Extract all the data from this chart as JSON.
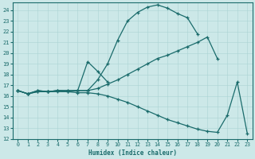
{
  "xlabel": "Humidex (Indice chaleur)",
  "xlim": [
    -0.5,
    23.5
  ],
  "ylim": [
    12,
    24.7
  ],
  "xticks": [
    0,
    1,
    2,
    3,
    4,
    5,
    6,
    7,
    8,
    9,
    10,
    11,
    12,
    13,
    14,
    15,
    16,
    17,
    18,
    19,
    20,
    21,
    22,
    23
  ],
  "yticks": [
    12,
    13,
    14,
    15,
    16,
    17,
    18,
    19,
    20,
    21,
    22,
    23,
    24
  ],
  "bg_color": "#cce8e8",
  "line_color": "#1a6b6b",
  "grid_color": "#aad4d4",
  "line1_x": [
    0,
    1,
    2,
    3,
    4,
    5,
    6,
    7,
    8,
    9,
    10,
    11,
    12,
    13,
    14,
    15,
    16,
    17,
    18
  ],
  "line1_y": [
    16.5,
    16.2,
    16.5,
    16.4,
    16.5,
    16.5,
    16.5,
    16.5,
    17.5,
    19.0,
    21.2,
    23.0,
    23.8,
    24.3,
    24.5,
    24.2,
    23.7,
    23.3,
    21.8
  ],
  "line2_x": [
    0,
    1,
    2,
    3,
    4,
    5,
    6,
    7,
    8,
    9,
    10,
    11,
    12,
    13,
    14,
    15,
    16,
    17,
    18,
    19,
    20
  ],
  "line2_y": [
    16.5,
    16.2,
    16.5,
    16.4,
    16.5,
    16.5,
    16.5,
    16.5,
    16.7,
    17.1,
    17.5,
    18.0,
    18.5,
    19.0,
    19.5,
    19.8,
    20.2,
    20.6,
    21.0,
    21.5,
    19.5
  ],
  "line3_x": [
    0,
    1,
    2,
    3,
    4,
    5,
    6,
    7,
    8,
    9,
    10,
    11,
    12,
    13,
    14,
    15,
    16,
    17,
    18,
    19,
    20,
    21,
    22,
    23
  ],
  "line3_y": [
    16.5,
    16.2,
    16.4,
    16.4,
    16.4,
    16.4,
    16.3,
    16.3,
    16.2,
    16.0,
    15.7,
    15.4,
    15.0,
    14.6,
    14.2,
    13.8,
    13.5,
    13.2,
    12.9,
    12.7,
    12.6,
    14.2,
    17.3,
    12.5
  ],
  "line4_x": [
    0,
    1,
    2,
    3,
    4,
    5,
    6,
    7,
    8,
    9
  ],
  "line4_y": [
    16.5,
    16.2,
    16.4,
    16.4,
    16.5,
    16.4,
    16.5,
    19.2,
    18.3,
    17.3
  ]
}
